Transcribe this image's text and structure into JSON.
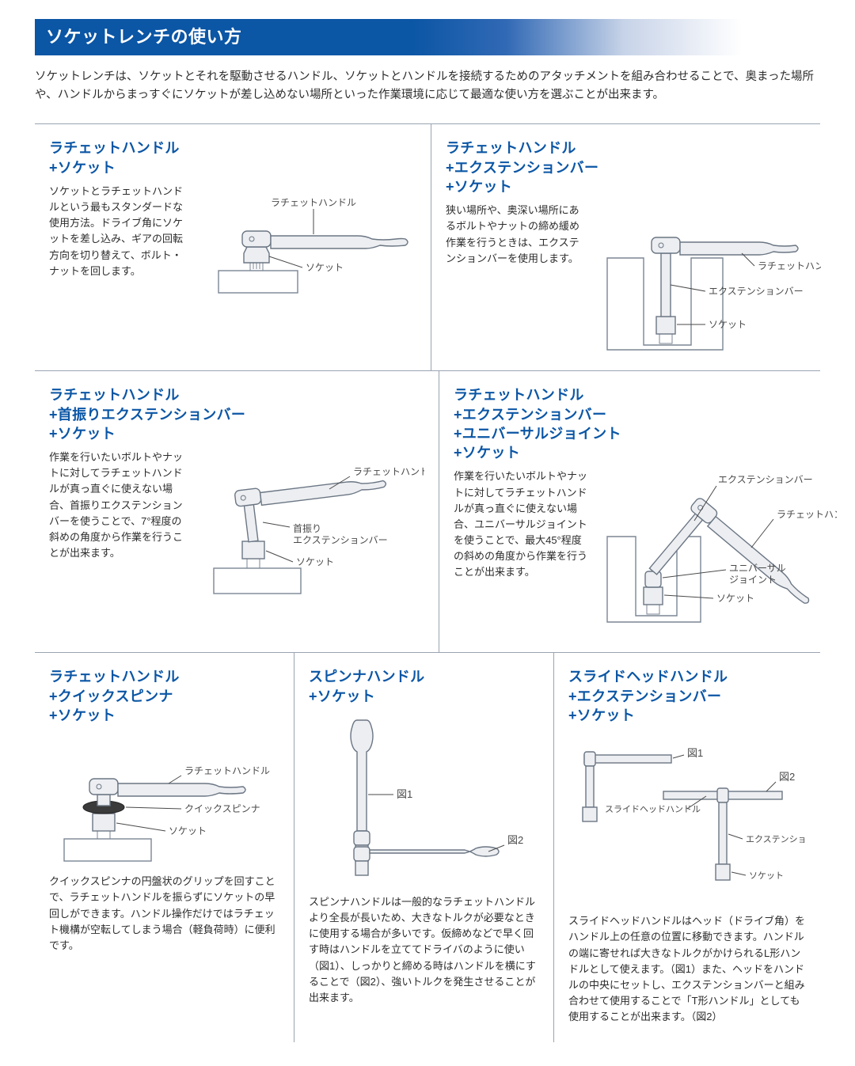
{
  "colors": {
    "primary": "#0b56a5",
    "text": "#2c2c2c",
    "border": "#9aa4b1",
    "partFill": "#eceef1",
    "blockFill": "#ffffff",
    "blockStroke": "#7b8694",
    "annot": "#4a4a4a"
  },
  "header": "ソケットレンチの使い方",
  "intro": "ソケットレンチは、ソケットとそれを駆動させるハンドル、ソケットとハンドルを接続するためのアタッチメントを組み合わせることで、奥まった場所や、ハンドルからまっすぐにソケットが差し込めない場所といった作業環境に応じて最適な使い方を選ぶことが出来ます。",
  "items": [
    {
      "title": "ラチェットハンドル\n+ソケット",
      "desc": "ソケットとラチェットハンドルという最もスタンダードな使用方法。ドライブ角にソケットを差し込み、ギアの回転方向を切り替えて、ボルト・ナットを回します。",
      "labels": {
        "a": "ラチェットハンドル",
        "b": "ソケット"
      }
    },
    {
      "title": "ラチェットハンドル\n+エクステンションバー\n+ソケット",
      "desc": "狭い場所や、奥深い場所にあるボルトやナットの締め緩め作業を行うときは、エクステンションバーを使用します。",
      "labels": {
        "a": "ラチェットハンドル",
        "b": "エクステンションバー",
        "c": "ソケット"
      }
    },
    {
      "title": "ラチェットハンドル\n+首振りエクステンションバー\n+ソケット",
      "desc": "作業を行いたいボルトやナットに対してラチェットハンドルが真っ直ぐに使えない場合、首振りエクステンションバーを使うことで、7°程度の斜めの角度から作業を行うことが出来ます。",
      "labels": {
        "a": "ラチェットハンドル",
        "b": "首振り\nエクステンションバー",
        "c": "ソケット"
      }
    },
    {
      "title": "ラチェットハンドル\n+エクステンションバー\n+ユニバーサルジョイント\n+ソケット",
      "desc": "作業を行いたいボルトやナットに対してラチェットハンドルが真っ直ぐに使えない場合、ユニバーサルジョイントを使うことで、最大45°程度の斜めの角度から作業を行うことが出来ます。",
      "labels": {
        "a": "エクステンションバー",
        "b": "ラチェットハンドル",
        "c": "ユニバーサル\nジョイント",
        "d": "ソケット"
      }
    },
    {
      "title": "ラチェットハンドル\n+クイックスピンナ\n+ソケット",
      "desc": "クイックスピンナの円盤状のグリップを回すことで、ラチェットハンドルを振らずにソケットの早回しができます。ハンドル操作だけではラチェット機構が空転してしまう場合（軽負荷時）に便利です。",
      "labels": {
        "a": "ラチェットハンドル",
        "b": "クイックスピンナ",
        "c": "ソケット"
      }
    },
    {
      "title": "スピンナハンドル\n+ソケット",
      "desc": "スピンナハンドルは一般的なラチェットハンドルより全長が長いため、大きなトルクが必要なときに使用する場合が多いです。仮締めなどで早く回す時はハンドルを立ててドライバのように使い（図1）、しっかりと締める時はハンドルを横にすることで（図2）、強いトルクを発生させることが出来ます。",
      "labels": {
        "a": "図1",
        "b": "図2"
      }
    },
    {
      "title": "スライドヘッドハンドル\n+エクステンションバー\n+ソケット",
      "desc": "スライドヘッドハンドルはヘッド（ドライブ角）をハンドル上の任意の位置に移動できます。ハンドルの端に寄せれば大きなトルクがかけられるL形ハンドルとして使えます。（図1）また、ヘッドをハンドルの中央にセットし、エクステンションバーと組み合わせて使用することで「T形ハンドル」としても使用することが出来ます。（図2）",
      "labels": {
        "a": "図1",
        "b": "図2",
        "c": "スライドヘッドハンドル",
        "d": "エクステンションバー",
        "e": "ソケット"
      }
    }
  ]
}
